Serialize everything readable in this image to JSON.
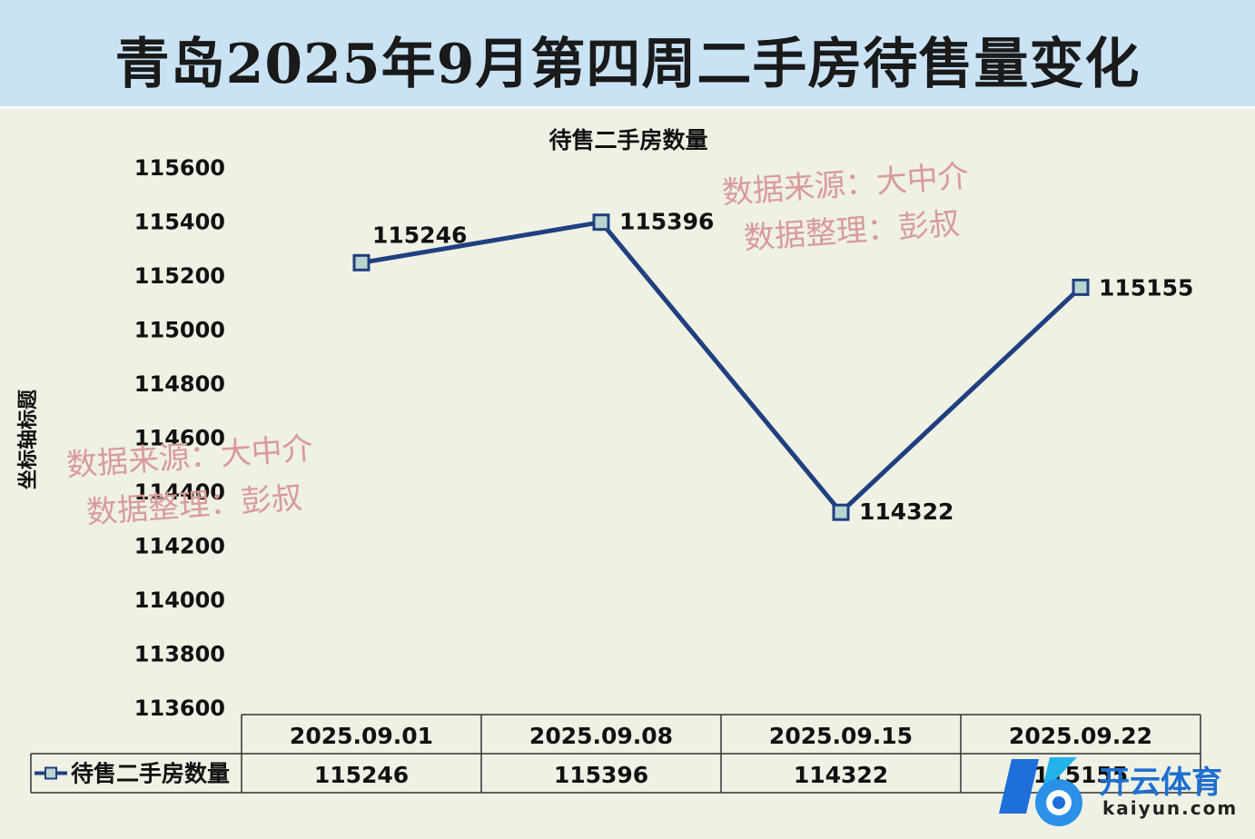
{
  "banner": {
    "title": "青岛2025年9月第四周二手房待售量变化"
  },
  "chart_data": {
    "type": "line",
    "title": "待售二手房数量",
    "ylabel": "坐标轴标题",
    "ylim": [
      113600,
      115600
    ],
    "yticks": [
      115600,
      115400,
      115200,
      115000,
      114800,
      114600,
      114400,
      114200,
      114000,
      113800,
      113600
    ],
    "categories": [
      "2025.09.01",
      "2025.09.08",
      "2025.09.15",
      "2025.09.22"
    ],
    "series": [
      {
        "name": "待售二手房数量",
        "values": [
          115246,
          115396,
          114322,
          115155
        ],
        "color": "#1f3f7f"
      }
    ],
    "data_labels": [
      "115246",
      "115396",
      "114322",
      "115155"
    ],
    "data_table": true,
    "grid": false
  },
  "watermarks": {
    "source_line": "数据来源：大中介",
    "editor_line": "数据整理：彭叔"
  },
  "logo": {
    "name": "开云体育",
    "url": "kaiyun.com"
  }
}
